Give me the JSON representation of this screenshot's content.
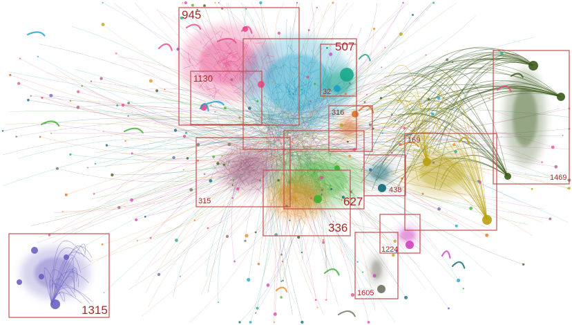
{
  "figure": {
    "background": "#ffffff",
    "box_color": "#c0504d",
    "label_color": "#a52a2a"
  },
  "clusters": [
    {
      "id": "945",
      "label": "945",
      "color": "#e8488a"
    },
    {
      "id": "507",
      "label": "507",
      "color": "#1aa88a"
    },
    {
      "id": "32",
      "label": "32",
      "color": "#1aa0c8"
    },
    {
      "id": "1130",
      "label": "1130",
      "color": "#e8488a"
    },
    {
      "id": "316",
      "label": "316",
      "color": "#e07020"
    },
    {
      "id": "169",
      "label": "169",
      "color": "#b8a010"
    },
    {
      "id": "1469",
      "label": "1469",
      "color": "#3a5a1a"
    },
    {
      "id": "315",
      "label": "315",
      "color": "#a06080"
    },
    {
      "id": "627",
      "label": "627",
      "color": "#3cb030"
    },
    {
      "id": "438",
      "label": "438",
      "color": "#106878"
    },
    {
      "id": "336",
      "label": "336",
      "color": "#e88828"
    },
    {
      "id": "1224",
      "label": "1224",
      "color": "#d040c0"
    },
    {
      "id": "1605",
      "label": "1605",
      "color": "#707060"
    },
    {
      "id": "1315",
      "label": "1315",
      "color": "#6a60c0"
    }
  ]
}
